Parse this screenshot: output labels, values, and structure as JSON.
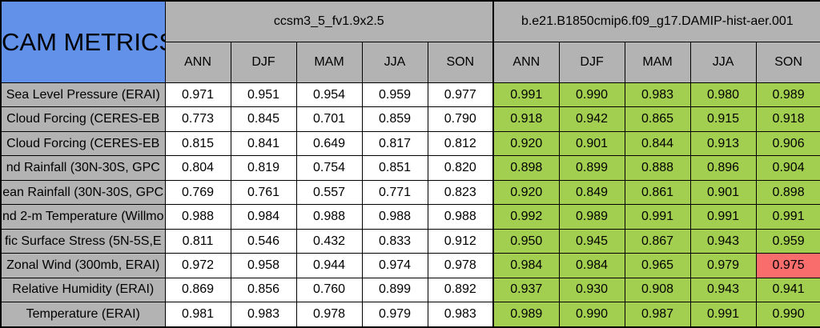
{
  "table": {
    "corner_label": "CAM METRICS",
    "groups": [
      {
        "label": "ccsm3_5_fv1.9x2.5",
        "seasons": [
          "ANN",
          "DJF",
          "MAM",
          "JJA",
          "SON"
        ]
      },
      {
        "label": "b.e21.B1850cmip6.f09_g17.DAMIP-hist-aer.001",
        "seasons": [
          "ANN",
          "DJF",
          "MAM",
          "JJA",
          "SON"
        ]
      }
    ],
    "rows": [
      {
        "metric": "Sea Level Pressure (ERAI)",
        "group1": [
          "0.971",
          "0.951",
          "0.954",
          "0.959",
          "0.977"
        ],
        "group2": [
          "0.991",
          "0.990",
          "0.983",
          "0.980",
          "0.989"
        ]
      },
      {
        "metric": "Cloud Forcing (CERES-EB",
        "group1": [
          "0.773",
          "0.845",
          "0.701",
          "0.859",
          "0.790"
        ],
        "group2": [
          "0.918",
          "0.942",
          "0.865",
          "0.915",
          "0.918"
        ]
      },
      {
        "metric": "Cloud Forcing (CERES-EB",
        "group1": [
          "0.815",
          "0.841",
          "0.649",
          "0.817",
          "0.812"
        ],
        "group2": [
          "0.920",
          "0.901",
          "0.844",
          "0.913",
          "0.906"
        ]
      },
      {
        "metric": "nd Rainfall (30N-30S, GPC",
        "group1": [
          "0.804",
          "0.819",
          "0.754",
          "0.851",
          "0.820"
        ],
        "group2": [
          "0.898",
          "0.899",
          "0.888",
          "0.896",
          "0.904"
        ]
      },
      {
        "metric": "ean Rainfall (30N-30S, GPC",
        "group1": [
          "0.769",
          "0.761",
          "0.557",
          "0.771",
          "0.823"
        ],
        "group2": [
          "0.920",
          "0.849",
          "0.861",
          "0.901",
          "0.898"
        ]
      },
      {
        "metric": "nd 2-m Temperature (Willmo",
        "group1": [
          "0.988",
          "0.984",
          "0.988",
          "0.988",
          "0.988"
        ],
        "group2": [
          "0.992",
          "0.989",
          "0.991",
          "0.991",
          "0.991"
        ]
      },
      {
        "metric": "fic Surface Stress (5N-5S,E",
        "group1": [
          "0.811",
          "0.546",
          "0.432",
          "0.833",
          "0.912"
        ],
        "group2": [
          "0.950",
          "0.945",
          "0.867",
          "0.943",
          "0.959"
        ]
      },
      {
        "metric": "Zonal Wind (300mb, ERAI)",
        "group1": [
          "0.972",
          "0.958",
          "0.944",
          "0.974",
          "0.978"
        ],
        "group2": [
          "0.984",
          "0.984",
          "0.965",
          "0.979",
          "0.975"
        ]
      },
      {
        "metric": "Relative Humidity (ERAI)",
        "group1": [
          "0.869",
          "0.856",
          "0.760",
          "0.899",
          "0.892"
        ],
        "group2": [
          "0.937",
          "0.930",
          "0.908",
          "0.943",
          "0.941"
        ]
      },
      {
        "metric": "Temperature (ERAI)",
        "group1": [
          "0.981",
          "0.983",
          "0.978",
          "0.979",
          "0.983"
        ],
        "group2": [
          "0.989",
          "0.990",
          "0.987",
          "0.991",
          "0.990"
        ]
      }
    ],
    "red_cell": {
      "row_index": 7,
      "group": 2,
      "season_index": 4
    }
  },
  "colors": {
    "blue": "#6191E8",
    "gray": "#B3B3B3",
    "green": "#A2CF4F",
    "red": "#FA6D6D"
  }
}
